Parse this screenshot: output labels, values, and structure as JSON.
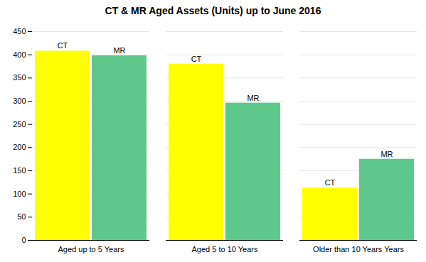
{
  "chart_data": {
    "type": "bar",
    "title": "CT & MR Aged Assets (Units) up to June 2016",
    "categories": [
      "Aged up to 5 Years",
      "Aged 5 to 10 Years",
      "Older than 10 Years Years"
    ],
    "series": [
      {
        "name": "CT",
        "color": "#FFFF00",
        "values": [
          408,
          380,
          113
        ]
      },
      {
        "name": "MR",
        "color": "#5DC88A",
        "values": [
          398,
          296,
          175
        ]
      }
    ],
    "ylim": [
      0,
      450
    ],
    "yticks": [
      0,
      50,
      100,
      150,
      200,
      250,
      300,
      350,
      400,
      450
    ],
    "grid": true
  }
}
